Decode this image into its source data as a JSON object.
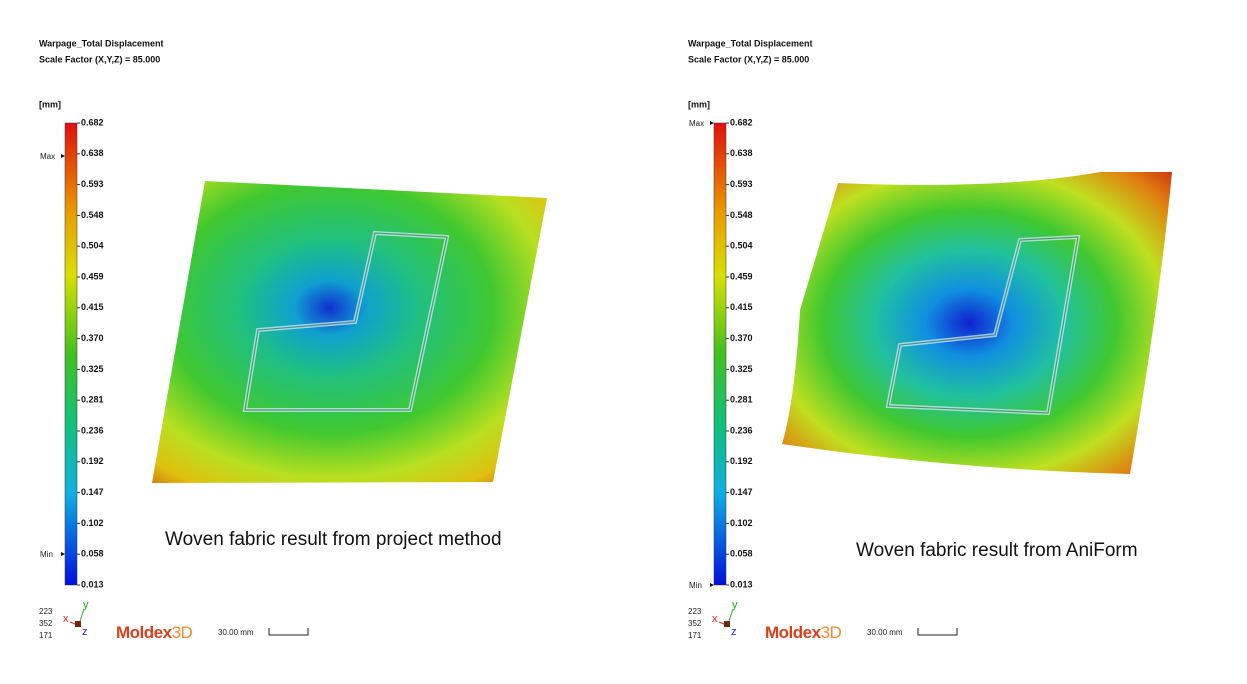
{
  "panels": [
    {
      "title": "Warpage_Total Displacement",
      "scale_factor": "Scale Factor (X,Y,Z) = 85.000",
      "unit": "[mm]",
      "max_label": "Max",
      "min_label": "Min",
      "ticks": [
        "0.682",
        "0.638",
        "0.593",
        "0.548",
        "0.504",
        "0.459",
        "0.415",
        "0.370",
        "0.325",
        "0.281",
        "0.236",
        "0.192",
        "0.147",
        "0.102",
        "0.058",
        "0.013"
      ],
      "view_numbers": [
        "223",
        "352",
        "171"
      ],
      "axes": [
        "x",
        "y",
        "z"
      ],
      "logo": [
        "Moldex",
        "3D"
      ],
      "scale_bar": "30.00 mm",
      "caption": "Woven fabric result from project method"
    },
    {
      "title": "Warpage_Total Displacement",
      "scale_factor": "Scale Factor (X,Y,Z) = 85.000",
      "unit": "[mm]",
      "max_label": "Max",
      "min_label": "Min",
      "ticks": [
        "0.682",
        "0.638",
        "0.593",
        "0.548",
        "0.504",
        "0.459",
        "0.415",
        "0.370",
        "0.325",
        "0.281",
        "0.236",
        "0.192",
        "0.147",
        "0.102",
        "0.058",
        "0.013"
      ],
      "view_numbers": [
        "223",
        "352",
        "171"
      ],
      "axes": [
        "x",
        "y",
        "z"
      ],
      "logo": [
        "Moldex",
        "3D"
      ],
      "scale_bar": "30.00 mm",
      "caption": "Woven fabric result from AniForm"
    }
  ]
}
